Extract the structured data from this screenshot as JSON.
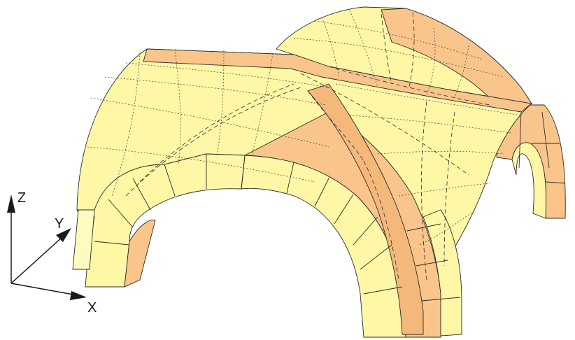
{
  "colors": {
    "background": "#ffffff",
    "yellow_face": "#fdf7a6",
    "yellow_face_light": "#fefac0",
    "orange_face": "#f9c58a",
    "orange_face_dark": "#f4b87a",
    "edge": "#2b2b2b",
    "axis": "#1a1a1a"
  },
  "axes": {
    "x_label": "X",
    "y_label": "Y",
    "z_label": "Z"
  }
}
